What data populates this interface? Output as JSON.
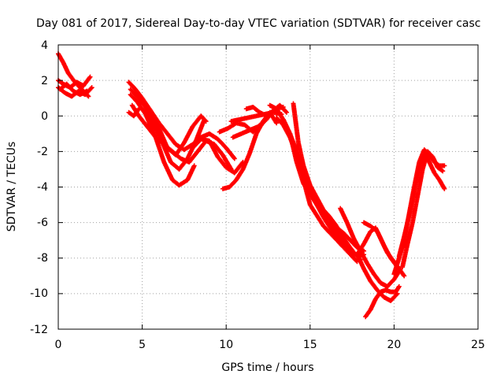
{
  "chart_data": {
    "type": "scatter",
    "title": "Day 081 of 2017, Sidereal Day-to-day VTEC variation (SDTVAR) for receiver casc",
    "xlabel": "GPS time / hours",
    "ylabel": "SDTVAR / TECUs",
    "xlim": [
      0,
      25
    ],
    "ylim": [
      -12,
      4
    ],
    "xticks": [
      "0",
      "5",
      "10",
      "15",
      "20",
      "25"
    ],
    "yticks": [
      "4",
      "2",
      "0",
      "-2",
      "-4",
      "-6",
      "-8",
      "-10",
      "-12"
    ],
    "grid": true,
    "marker_color": "#ff0000",
    "marker": "+",
    "series": [
      {
        "x": [
          0.0,
          0.3,
          0.6,
          1.0,
          1.4,
          1.8
        ],
        "y": [
          3.5,
          3.0,
          2.4,
          1.9,
          1.5,
          1.1
        ]
      },
      {
        "x": [
          0.0,
          0.3,
          0.7,
          1.1,
          1.5,
          1.9
        ],
        "y": [
          2.0,
          1.8,
          1.6,
          1.9,
          1.7,
          2.2
        ]
      },
      {
        "x": [
          0.0,
          0.4,
          0.8,
          1.2,
          1.6,
          2.0
        ],
        "y": [
          1.6,
          1.3,
          1.1,
          1.4,
          1.2,
          1.6
        ]
      },
      {
        "x": [
          0.1,
          0.5,
          0.9,
          1.3,
          1.7
        ],
        "y": [
          1.5,
          1.8,
          1.4,
          1.2,
          1.4
        ]
      },
      {
        "x": [
          4.2,
          4.6,
          5.0,
          5.5,
          6.0,
          6.5,
          7.0,
          7.5,
          8.0,
          8.5,
          8.8
        ],
        "y": [
          1.9,
          1.5,
          1.0,
          0.3,
          -0.7,
          -1.8,
          -2.2,
          -1.5,
          -0.6,
          0.0,
          -0.3
        ]
      },
      {
        "x": [
          4.3,
          4.7,
          5.2,
          5.7,
          6.2,
          6.7,
          7.2,
          7.7,
          8.2,
          8.7
        ],
        "y": [
          1.5,
          1.1,
          0.5,
          -0.5,
          -1.5,
          -2.6,
          -3.0,
          -2.4,
          -1.4,
          -0.2
        ]
      },
      {
        "x": [
          4.3,
          4.7,
          5.2,
          5.8,
          6.3,
          6.8,
          7.2,
          7.7,
          8.1
        ],
        "y": [
          1.2,
          0.8,
          0.1,
          -1.2,
          -2.6,
          -3.6,
          -3.9,
          -3.6,
          -2.8
        ]
      },
      {
        "x": [
          4.4,
          4.8,
          5.3,
          5.8,
          6.3,
          6.8,
          7.3,
          7.8,
          8.3,
          8.8,
          9.3,
          9.8,
          10.3
        ],
        "y": [
          0.6,
          0.0,
          -0.6,
          -1.2,
          -1.6,
          -2.0,
          -2.4,
          -2.6,
          -2.0,
          -1.4,
          -1.6,
          -2.2,
          -3.0
        ]
      },
      {
        "x": [
          4.5,
          5.0,
          5.5,
          6.0,
          6.5,
          7.0,
          7.5,
          8.0,
          8.5,
          9.0,
          9.5,
          10.0,
          10.5
        ],
        "y": [
          1.3,
          0.8,
          0.3,
          -0.4,
          -1.0,
          -1.6,
          -1.9,
          -1.6,
          -1.2,
          -1.0,
          -1.3,
          -1.8,
          -2.4
        ]
      },
      {
        "x": [
          4.2,
          4.5,
          4.8
        ],
        "y": [
          0.2,
          0.0,
          0.4
        ]
      },
      {
        "x": [
          8.0,
          8.5,
          9.0,
          9.5,
          10.0,
          10.5,
          11.0
        ],
        "y": [
          -1.8,
          -1.3,
          -1.4,
          -2.3,
          -2.9,
          -3.2,
          -2.6
        ]
      },
      {
        "x": [
          9.8,
          10.2,
          10.6,
          11.0,
          11.4,
          11.8,
          12.2,
          12.6,
          13.0
        ],
        "y": [
          -4.1,
          -4.0,
          -3.6,
          -3.0,
          -2.1,
          -1.0,
          -0.3,
          0.2,
          -0.4
        ]
      },
      {
        "x": [
          10.3,
          10.8,
          11.3,
          11.8,
          12.3,
          12.8,
          13.3
        ],
        "y": [
          -0.3,
          -0.2,
          -0.1,
          0.0,
          0.1,
          0.2,
          0.1
        ]
      },
      {
        "x": [
          9.6,
          10.1,
          10.6,
          11.1,
          11.6,
          12.1,
          12.6,
          13.1
        ],
        "y": [
          -0.9,
          -0.7,
          -0.4,
          -0.5,
          -0.9,
          -0.5,
          0.1,
          0.5
        ]
      },
      {
        "x": [
          10.4,
          10.9,
          11.4,
          11.9,
          12.4,
          12.9,
          13.4
        ],
        "y": [
          -1.2,
          -1.0,
          -0.8,
          -0.6,
          -0.2,
          0.4,
          0.5
        ]
      },
      {
        "x": [
          11.2,
          11.6,
          12.0,
          12.4,
          12.8,
          13.2,
          13.6
        ],
        "y": [
          0.4,
          0.5,
          0.2,
          0.0,
          0.3,
          0.6,
          0.2
        ]
      },
      {
        "x": [
          12.6,
          13.0,
          13.4,
          13.8,
          14.2,
          14.6,
          15.0,
          15.4,
          15.8,
          16.2,
          16.6,
          17.0,
          17.4,
          17.8,
          18.2
        ],
        "y": [
          0.6,
          0.4,
          -0.2,
          -1.0,
          -2.0,
          -3.2,
          -4.3,
          -5.0,
          -5.7,
          -6.3,
          -6.9,
          -7.3,
          -7.6,
          -7.9,
          -7.8
        ]
      },
      {
        "x": [
          13.0,
          13.4,
          13.8,
          14.2,
          14.6,
          15.0,
          15.4,
          15.8,
          16.2,
          16.6,
          17.0,
          17.4,
          17.8
        ],
        "y": [
          -0.1,
          -0.5,
          -1.2,
          -2.2,
          -3.6,
          -5.0,
          -5.6,
          -6.2,
          -6.6,
          -7.0,
          -7.4,
          -7.8,
          -8.2
        ]
      },
      {
        "x": [
          13.4,
          13.8,
          14.2,
          14.6,
          15.0,
          15.4,
          15.8,
          16.2,
          16.6,
          17.0,
          17.4,
          17.8,
          18.2
        ],
        "y": [
          -0.2,
          -1.0,
          -2.6,
          -3.8,
          -4.4,
          -5.0,
          -5.5,
          -5.9,
          -6.3,
          -6.6,
          -7.0,
          -7.4,
          -7.6
        ]
      },
      {
        "x": [
          14.0,
          14.3,
          14.6,
          15.0,
          15.4,
          15.8,
          16.2,
          16.6,
          17.0,
          17.4
        ],
        "y": [
          0.7,
          -1.5,
          -2.8,
          -3.9,
          -4.6,
          -5.3,
          -5.9,
          -6.6,
          -7.2,
          -7.6
        ]
      },
      {
        "x": [
          14.5,
          14.9,
          15.3,
          15.7,
          16.1,
          16.5,
          16.9,
          17.3,
          17.7,
          18.0
        ],
        "y": [
          -2.5,
          -3.8,
          -4.6,
          -5.2,
          -5.6,
          -6.1,
          -6.7,
          -7.3,
          -7.8,
          -8.1
        ]
      },
      {
        "x": [
          16.8,
          17.2,
          17.6,
          18.0,
          18.4,
          18.8,
          19.2,
          19.6,
          20.0,
          20.4
        ],
        "y": [
          -5.2,
          -6.0,
          -6.9,
          -7.6,
          -8.3,
          -8.9,
          -9.4,
          -9.6,
          -9.2,
          -8.6
        ]
      },
      {
        "x": [
          17.8,
          18.2,
          18.6,
          19.0,
          19.4,
          19.8,
          20.2
        ],
        "y": [
          -7.8,
          -8.6,
          -9.3,
          -9.8,
          -10.2,
          -10.4,
          -10.0
        ]
      },
      {
        "x": [
          18.2,
          18.6,
          19.0,
          19.4,
          19.8,
          20.2
        ],
        "y": [
          -6.0,
          -6.2,
          -6.5,
          -7.3,
          -8.0,
          -8.5
        ]
      },
      {
        "x": [
          17.8,
          18.2,
          18.6,
          18.9,
          19.2,
          19.6,
          20.0,
          20.3,
          20.6
        ],
        "y": [
          -7.8,
          -7.2,
          -6.5,
          -6.3,
          -6.9,
          -7.7,
          -8.2,
          -8.6,
          -9.0
        ]
      },
      {
        "x": [
          18.3,
          18.6,
          18.9,
          19.2,
          19.5,
          19.8,
          20.1,
          20.3
        ],
        "y": [
          -11.3,
          -10.9,
          -10.3,
          -9.9,
          -9.8,
          -9.9,
          -9.9,
          -9.6
        ]
      },
      {
        "x": [
          20.0,
          20.3,
          20.6,
          20.9,
          21.2,
          21.5,
          21.8,
          22.1,
          22.4,
          22.7,
          23.0
        ],
        "y": [
          -8.9,
          -8.0,
          -7.0,
          -5.5,
          -4.0,
          -2.6,
          -1.9,
          -2.2,
          -2.6,
          -2.8,
          -2.8
        ]
      },
      {
        "x": [
          20.3,
          20.6,
          20.9,
          21.2,
          21.5,
          21.8,
          22.1,
          22.4,
          22.7,
          23.0
        ],
        "y": [
          -7.9,
          -6.8,
          -5.6,
          -4.2,
          -3.0,
          -2.1,
          -2.6,
          -3.2,
          -3.6,
          -4.1
        ]
      },
      {
        "x": [
          20.5,
          20.8,
          21.1,
          21.4,
          21.7,
          22.0,
          22.3,
          22.6,
          22.9
        ],
        "y": [
          -8.5,
          -7.2,
          -6.0,
          -4.5,
          -3.0,
          -2.0,
          -2.3,
          -2.9,
          -3.1
        ]
      }
    ]
  }
}
